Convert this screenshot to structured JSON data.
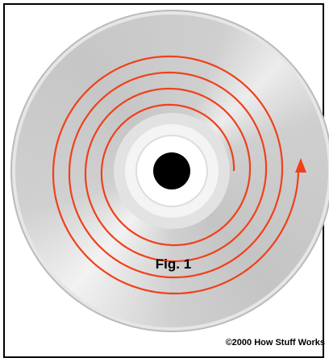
{
  "figure": {
    "label": "Fig. 1",
    "credit": "©2000 How Stuff Works"
  }
}
